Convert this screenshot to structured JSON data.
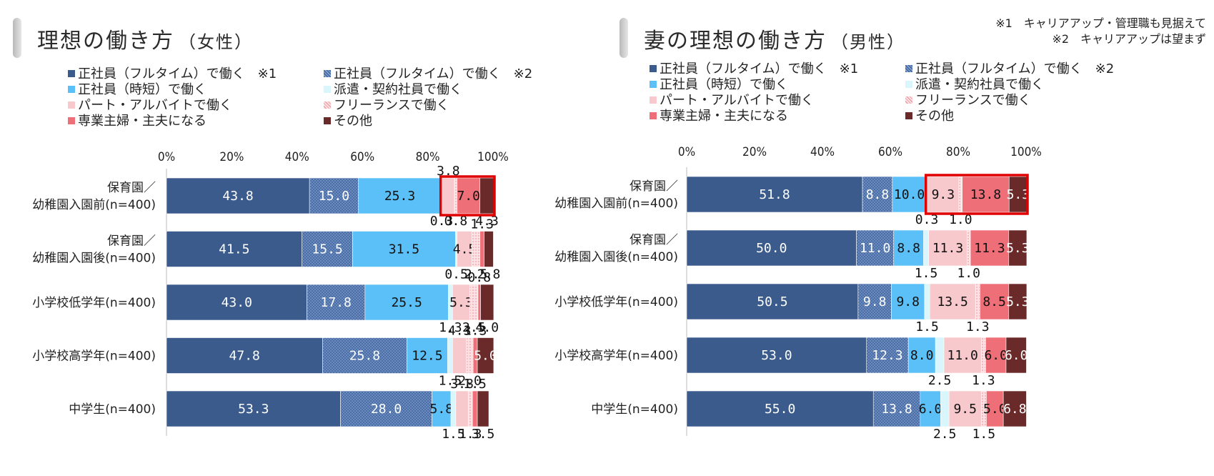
{
  "legend_items": [
    {
      "label": "正社員（フルタイム）で働く　※1",
      "color": "#3a5b8c"
    },
    {
      "label": "正社員（フルタイム）で働く　※2",
      "color": "#4a6ea8"
    },
    {
      "label": "正社員（時短）で働く",
      "color": "#5bc0f8"
    },
    {
      "label": "派遣・契約社員で働く",
      "color": "#d8f6fb"
    },
    {
      "label": "パート・アルバイトで働く",
      "color": "#f7c8cc"
    },
    {
      "label": "フリーランスで働く",
      "color": "#f4a0a6"
    },
    {
      "label": "専業主婦・主夫になる",
      "color": "#ee6f77"
    },
    {
      "label": "その他",
      "color": "#6b2a2a"
    }
  ],
  "notes": [
    "※1　キャリアアップ・管理職も見据えて",
    "※2　キャリアアップは望まず"
  ],
  "chart_data": [
    {
      "type": "bar",
      "orientation": "horizontal",
      "stacked": true,
      "title": "理想の働き方",
      "subtitle": "（女性）",
      "categories": [
        "保育園／\n幼稚園入園前(n=400)",
        "保育園／\n幼稚園入園後(n=400)",
        "小学校低学年(n=400)",
        "小学校高学年(n=400)",
        "中学生(n=400)"
      ],
      "series": [
        {
          "name": "正社員（フルタイム）で働く　※1",
          "values": [
            43.8,
            41.5,
            43.0,
            47.8,
            53.3
          ]
        },
        {
          "name": "正社員（フルタイム）で働く　※2",
          "values": [
            15.0,
            15.5,
            17.8,
            25.8,
            28.0
          ]
        },
        {
          "name": "正社員（時短）で働く",
          "values": [
            25.3,
            31.5,
            25.5,
            12.5,
            5.8
          ]
        },
        {
          "name": "派遣・契約社員で働く",
          "values": [
            0.3,
            0.5,
            1.3,
            1.5,
            1.5
          ]
        },
        {
          "name": "パート・アルバイトで働く",
          "values": [
            3.8,
            4.5,
            5.3,
            4.3,
            3.8
          ]
        },
        {
          "name": "フリーランスで働く",
          "values": [
            0.8,
            2.5,
            2.5,
            2.0,
            1.3
          ]
        },
        {
          "name": "専業主婦・主夫になる",
          "values": [
            7.0,
            1.3,
            0.8,
            1.3,
            1.5
          ]
        },
        {
          "name": "その他",
          "values": [
            4.3,
            2.8,
            4.0,
            5.0,
            3.5
          ]
        }
      ],
      "x_ticks": [
        "0%",
        "20%",
        "40%",
        "60%",
        "80%",
        "100%"
      ],
      "xlim": [
        0,
        100
      ],
      "highlight_category": 0
    },
    {
      "type": "bar",
      "orientation": "horizontal",
      "stacked": true,
      "title": "妻の理想の働き方",
      "subtitle": "（男性）",
      "categories": [
        "保育園／\n幼稚園入園前(n=400)",
        "保育園／\n幼稚園入園後(n=400)",
        "小学校低学年(n=400)",
        "小学校高学年(n=400)",
        "中学生(n=400)"
      ],
      "series": [
        {
          "name": "正社員（フルタイム）で働く　※1",
          "values": [
            51.8,
            50.0,
            50.5,
            53.0,
            55.0
          ]
        },
        {
          "name": "正社員（フルタイム）で働く　※2",
          "values": [
            8.8,
            11.0,
            9.8,
            12.3,
            13.8
          ]
        },
        {
          "name": "正社員（時短）で働く",
          "values": [
            10.0,
            8.8,
            9.8,
            8.0,
            6.0
          ]
        },
        {
          "name": "派遣・契約社員で働く",
          "values": [
            0.3,
            1.5,
            1.5,
            2.5,
            2.5
          ]
        },
        {
          "name": "パート・アルバイトで働く",
          "values": [
            9.3,
            11.3,
            13.5,
            11.0,
            9.5
          ]
        },
        {
          "name": "フリーランスで働く",
          "values": [
            1.0,
            1.0,
            1.3,
            1.3,
            1.5
          ]
        },
        {
          "name": "専業主婦・主夫になる",
          "values": [
            13.8,
            11.3,
            8.5,
            6.0,
            5.0
          ]
        },
        {
          "name": "その他",
          "values": [
            5.3,
            5.3,
            5.3,
            6.0,
            6.8
          ]
        }
      ],
      "x_ticks": [
        "0%",
        "20%",
        "40%",
        "60%",
        "80%",
        "100%"
      ],
      "xlim": [
        0,
        100
      ],
      "highlight_category": 0
    }
  ]
}
